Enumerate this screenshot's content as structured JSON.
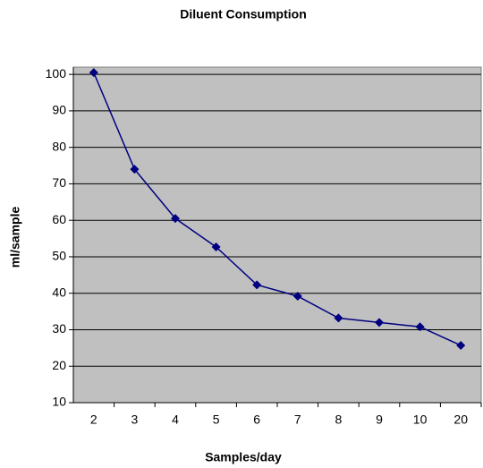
{
  "chart_data": {
    "type": "line",
    "title": "Diluent Consumption",
    "x_label": "Samples/day",
    "y_label": "ml/sample",
    "categories": [
      "2",
      "3",
      "4",
      "5",
      "6",
      "7",
      "8",
      "9",
      "10",
      "20"
    ],
    "series": [
      {
        "name": "Diluent",
        "color": "#000080",
        "values": [
          100.5,
          74,
          60.5,
          52.7,
          42.3,
          39.2,
          33.2,
          32,
          30.8,
          25.7
        ]
      }
    ],
    "ylim": [
      10,
      102
    ],
    "yticks": [
      10,
      20,
      30,
      40,
      50,
      60,
      70,
      80,
      90,
      100
    ],
    "grid": true,
    "plot_background": "#c0c0c0"
  }
}
